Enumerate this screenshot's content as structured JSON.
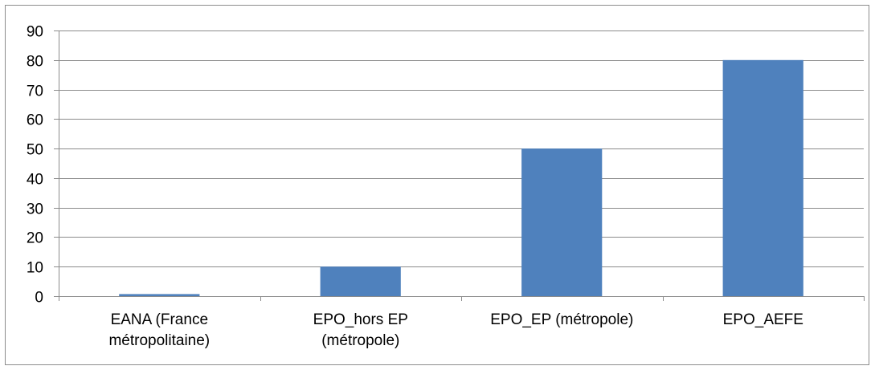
{
  "chart_data": {
    "type": "bar",
    "title": "",
    "xlabel": "",
    "ylabel": "",
    "categories": [
      [
        "EANA (France",
        "métropolitaine)"
      ],
      [
        "EPO_hors EP",
        "(métropole)"
      ],
      [
        "EPO_EP (métropole)"
      ],
      [
        "EPO_AEFE"
      ]
    ],
    "values": [
      0.7,
      10,
      50,
      80
    ],
    "ylim": [
      0,
      90
    ],
    "yticks": [
      0,
      10,
      20,
      30,
      40,
      50,
      60,
      70,
      80,
      90
    ],
    "grid": true,
    "legend": "none",
    "colors": {
      "bar": "#4f81bd",
      "grid": "#8c8c8c",
      "axis": "#8c8c8c"
    }
  }
}
